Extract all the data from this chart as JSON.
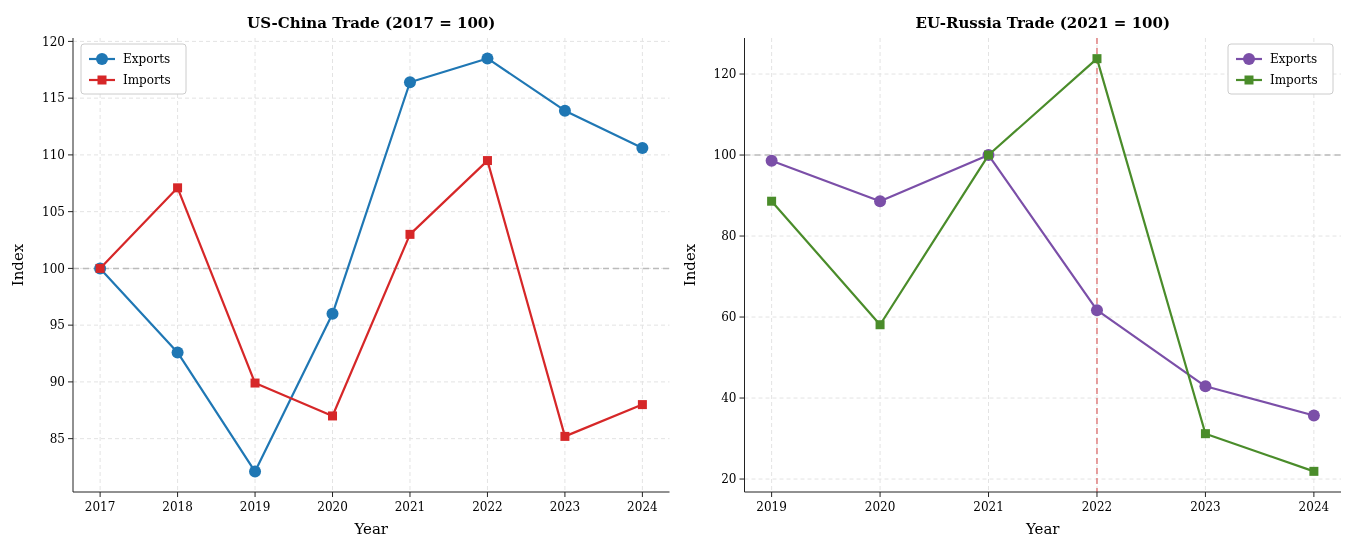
{
  "chart_data": [
    {
      "type": "line",
      "title": "US-China Trade (2017 = 100)",
      "xlabel": "Year",
      "ylabel": "Index",
      "x": [
        2017,
        2018,
        2019,
        2020,
        2021,
        2022,
        2023,
        2024
      ],
      "xlim": [
        2016.65,
        2024.35
      ],
      "xticks": [
        2017,
        2018,
        2019,
        2020,
        2021,
        2022,
        2023,
        2024
      ],
      "ylim": [
        80.3,
        120.3
      ],
      "yticks": [
        85,
        90,
        95,
        100,
        105,
        110,
        115,
        120
      ],
      "grid": true,
      "legend": "top left",
      "line_style": "solid",
      "series": [
        {
          "name": "Exports",
          "color": "#1f77b4",
          "marker": "circle",
          "values": [
            100,
            92.6,
            82.1,
            96.0,
            116.4,
            118.5,
            113.9,
            110.6
          ]
        },
        {
          "name": "Imports",
          "color": "#d62728",
          "marker": "square",
          "values": [
            100,
            107.1,
            89.9,
            87.0,
            103.0,
            109.5,
            85.2,
            88.0
          ]
        }
      ],
      "ref_lines": [
        {
          "axis": "y",
          "value": 100,
          "label": null,
          "color": "#bbbbbb",
          "line_style": "dashed"
        }
      ]
    },
    {
      "type": "line",
      "title": "EU-Russia Trade (2021 = 100)",
      "xlabel": "Year",
      "ylabel": "Index",
      "x": [
        2019,
        2020,
        2021,
        2022,
        2023,
        2024
      ],
      "xlim": [
        2018.75,
        2024.25
      ],
      "xticks": [
        2019,
        2020,
        2021,
        2022,
        2023,
        2024
      ],
      "ylim": [
        16.8,
        128.9
      ],
      "yticks": [
        20,
        40,
        60,
        80,
        100,
        120
      ],
      "grid": true,
      "legend": "top right",
      "line_style": "solid",
      "series": [
        {
          "name": "Exports",
          "color": "#7b4fa8",
          "marker": "circle",
          "values": [
            98.6,
            88.6,
            100,
            61.7,
            42.9,
            35.7
          ]
        },
        {
          "name": "Imports",
          "color": "#4a8c2a",
          "marker": "square",
          "values": [
            88.6,
            58.1,
            100,
            123.8,
            31.2,
            21.9
          ]
        }
      ],
      "ref_lines": [
        {
          "axis": "y",
          "value": 100,
          "label": null,
          "color": "#bbbbbb",
          "line_style": "dashed"
        },
        {
          "axis": "x",
          "value": 2022,
          "label": null,
          "color": "#e08080",
          "line_style": "dashed"
        }
      ]
    }
  ]
}
